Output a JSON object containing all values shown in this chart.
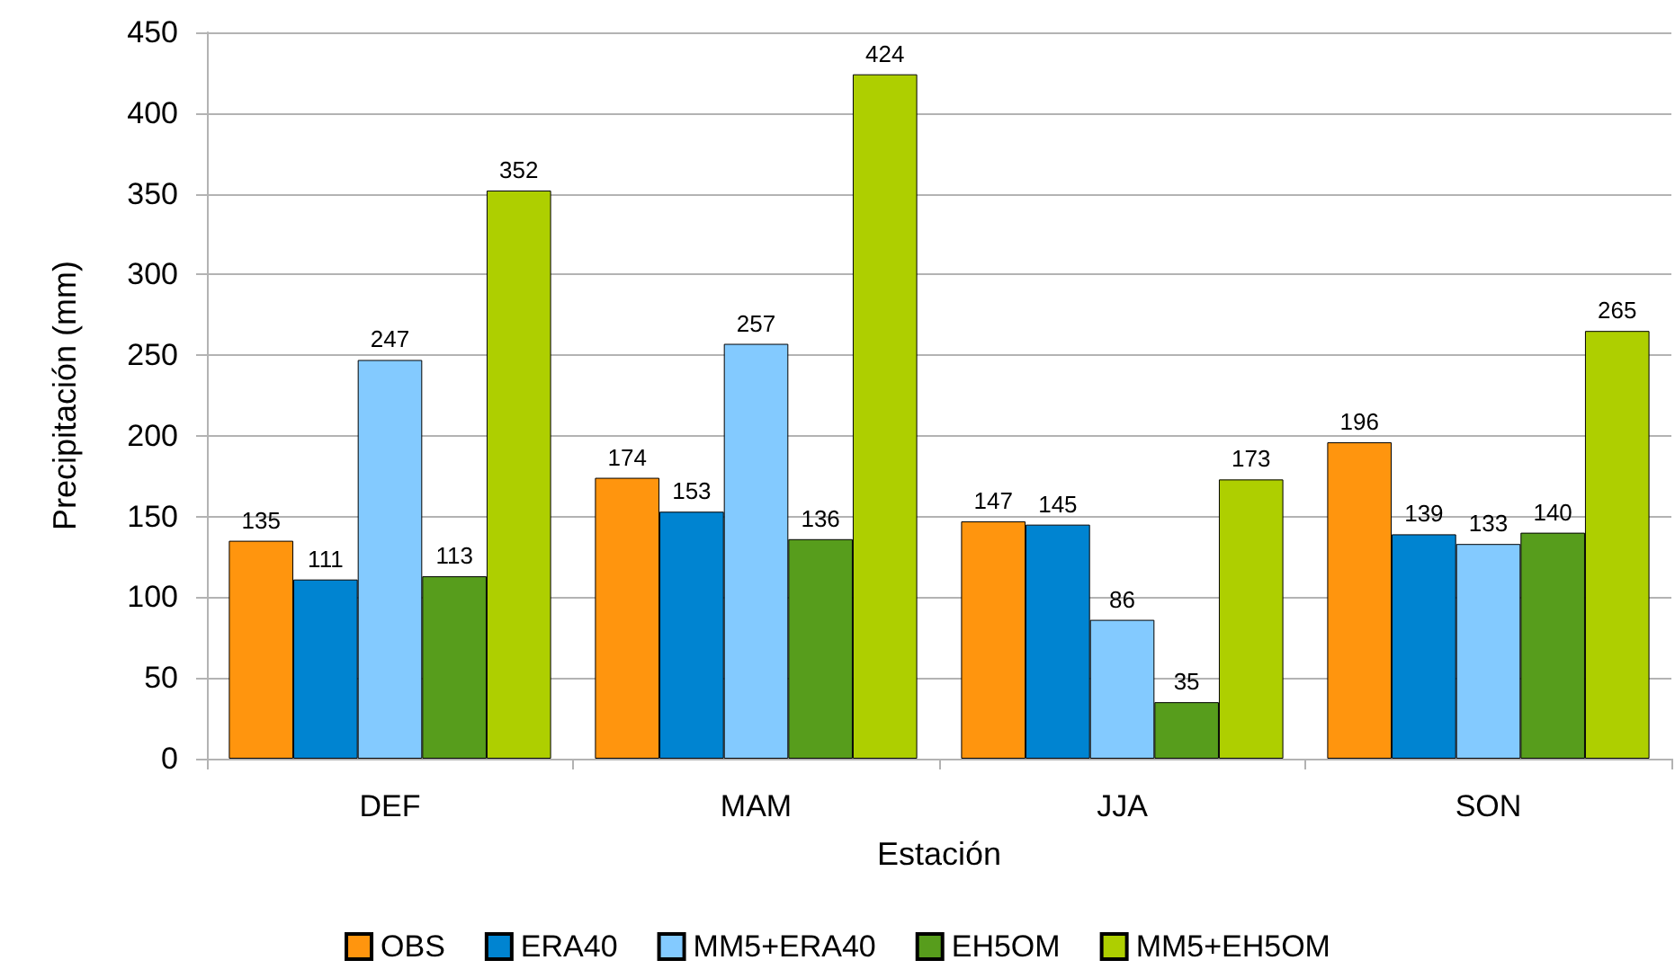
{
  "chart_data": {
    "type": "bar",
    "xlabel": "Estación",
    "ylabel": "Precipitación (mm)",
    "categories": [
      "DEF",
      "MAM",
      "JJA",
      "SON"
    ],
    "series": [
      {
        "name": "OBS",
        "color": "#ff950e",
        "values": [
          135,
          174,
          147,
          196
        ]
      },
      {
        "name": "ERA40",
        "color": "#0084d1",
        "values": [
          111,
          153,
          145,
          139
        ]
      },
      {
        "name": "MM5+ERA40",
        "color": "#83caff",
        "values": [
          247,
          257,
          86,
          133
        ]
      },
      {
        "name": "EH5OM",
        "color": "#579d1c",
        "values": [
          113,
          136,
          35,
          140
        ]
      },
      {
        "name": "MM5+EH5OM",
        "color": "#aecf00",
        "values": [
          352,
          424,
          173,
          265
        ]
      }
    ],
    "ylim": [
      0,
      450
    ],
    "yticks": [
      0,
      50,
      100,
      150,
      200,
      250,
      300,
      350,
      400,
      450
    ],
    "grid": "y",
    "legend": "bottom",
    "data_labels": true
  }
}
